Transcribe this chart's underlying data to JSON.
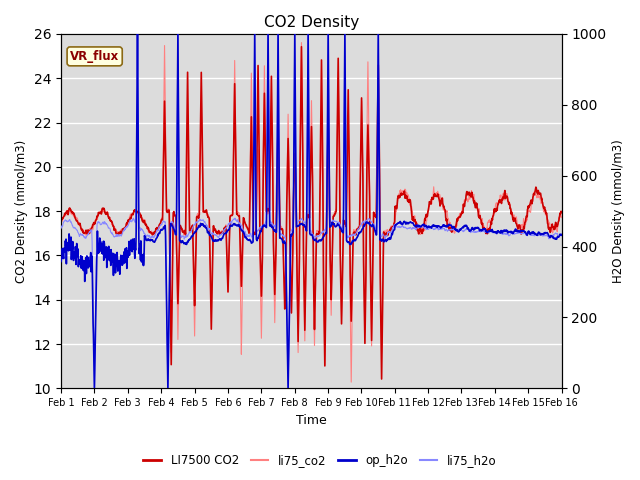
{
  "title": "CO2 Density",
  "xlabel": "Time",
  "ylabel_left": "CO2 Density (mmol/m3)",
  "ylabel_right": "H2O Density (mmol/m3)",
  "ylim_left": [
    10,
    26
  ],
  "ylim_right": [
    0,
    1000
  ],
  "yticks_left": [
    10,
    12,
    14,
    16,
    18,
    20,
    22,
    24,
    26
  ],
  "yticks_right": [
    0,
    200,
    400,
    600,
    800,
    1000
  ],
  "xtick_labels": [
    "Feb 1",
    "Feb 2",
    "Feb 3",
    "Feb 4",
    "Feb 5",
    "Feb 6",
    "Feb 7",
    "Feb 8",
    "Feb 9",
    "Feb 10",
    "Feb 11",
    "Feb 12",
    "Feb 13",
    "Feb 14",
    "Feb 15",
    "Feb 16"
  ],
  "legend_labels": [
    "LI7500 CO2",
    "li75_co2",
    "op_h2o",
    "li75_h2o"
  ],
  "li7500_color": "#cc0000",
  "li75co2_color": "#ff8080",
  "oph2o_color": "#0000cc",
  "li75h2o_color": "#8888ff",
  "li7500_lw": 1.2,
  "li75co2_lw": 0.8,
  "oph2o_lw": 1.2,
  "li75h2o_lw": 0.8,
  "vr_flux_label": "VR_flux",
  "bg_color": "#dcdcdc",
  "grid_color": "#ffffff",
  "n_points": 1500,
  "seed": 7
}
